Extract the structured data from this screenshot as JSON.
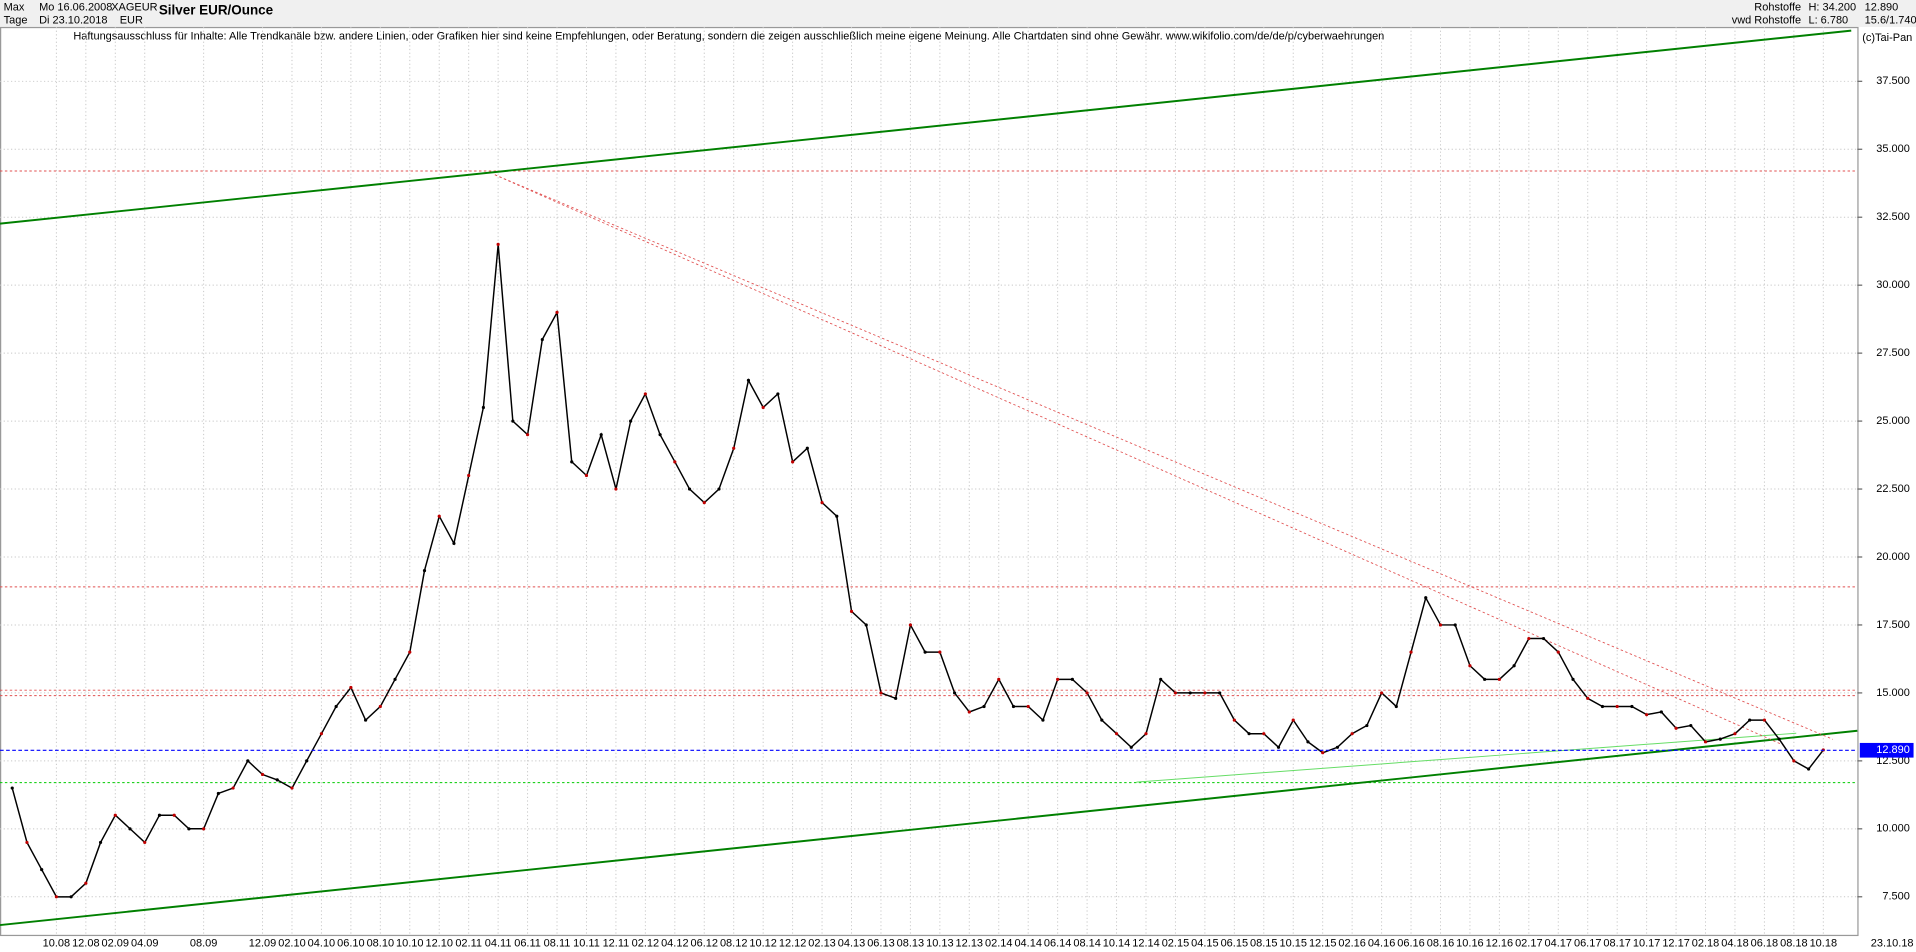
{
  "header": {
    "range": "Max",
    "period": "Tage",
    "date_from": "Mo 16.06.2008",
    "date_to": "Di 23.10.2018",
    "symbol": "XAGEUR",
    "currency": "EUR",
    "group": "Rohstoffe",
    "source": "vwd Rohstoffe",
    "high": "H: 34.200",
    "low": "L: 6.780",
    "last": "12.890",
    "change": "15.6/1.740",
    "copyright": "(c)Tai-Pan",
    "end_date": "23.10.18"
  },
  "chart_data": {
    "type": "line",
    "title": "Silver EUR/Ounce",
    "subtitle": "Haftungsausschluss für Inhalte: Alle Trendkanäle bzw. andere Linien, oder Grafiken hier sind keine Empfehlungen, oder Beratung, sondern die zeigen ausschließlich meine eigene Meinung. Alle Chartdaten sind ohne Gewähr.  www.wikifolio.com/de/de/p/cyberwaehrungen",
    "color": "#000000",
    "categories": [
      null,
      null,
      null,
      "10.08",
      null,
      "12.08",
      null,
      "02.09",
      null,
      "04.09",
      null,
      null,
      null,
      "08.09",
      null,
      null,
      null,
      "12.09",
      null,
      "02.10",
      null,
      "04.10",
      null,
      "06.10",
      null,
      "08.10",
      null,
      "10.10",
      null,
      "12.10",
      null,
      "02.11",
      null,
      "04.11",
      null,
      "06.11",
      null,
      "08.11",
      null,
      "10.11",
      null,
      "12.11",
      null,
      "02.12",
      null,
      "04.12",
      null,
      "06.12",
      null,
      "08.12",
      null,
      "10.12",
      null,
      "12.12",
      null,
      "02.13",
      null,
      "04.13",
      null,
      "06.13",
      null,
      "08.13",
      null,
      "10.13",
      null,
      "12.13",
      null,
      "02.14",
      null,
      "04.14",
      null,
      "06.14",
      null,
      "08.14",
      null,
      "10.14",
      null,
      "12.14",
      null,
      "02.15",
      null,
      "04.15",
      null,
      "06.15",
      null,
      "08.15",
      null,
      "10.15",
      null,
      "12.15",
      null,
      "02.16",
      null,
      "04.16",
      null,
      "06.16",
      null,
      "08.16",
      null,
      "10.16",
      null,
      "12.16",
      null,
      "02.17",
      null,
      "04.17",
      null,
      "06.17",
      null,
      "08.17",
      null,
      "10.17",
      null,
      "12.17",
      null,
      "02.18",
      null,
      "04.18",
      null,
      "06.18",
      null,
      "08.18",
      null,
      "10.18"
    ],
    "values": [
      11.5,
      9.5,
      8.5,
      7.5,
      7.5,
      8.0,
      9.5,
      10.5,
      10.0,
      9.5,
      10.5,
      10.5,
      10.0,
      10.0,
      11.3,
      11.5,
      12.5,
      12.0,
      11.8,
      11.5,
      12.5,
      13.5,
      14.5,
      15.2,
      14.0,
      14.5,
      15.5,
      16.5,
      19.5,
      21.5,
      20.5,
      23.0,
      25.5,
      31.5,
      25.0,
      24.5,
      28.0,
      29.0,
      23.5,
      23.0,
      24.5,
      22.5,
      25.0,
      26.0,
      24.5,
      23.5,
      22.5,
      22.0,
      22.5,
      24.0,
      26.5,
      25.5,
      26.0,
      23.5,
      24.0,
      22.0,
      21.5,
      18.0,
      17.5,
      15.0,
      14.8,
      17.5,
      16.5,
      16.5,
      15.0,
      14.3,
      14.5,
      15.5,
      14.5,
      14.5,
      14.0,
      15.5,
      15.5,
      15.0,
      14.0,
      13.5,
      13.0,
      13.5,
      15.5,
      15.0,
      15.0,
      15.0,
      15.0,
      14.0,
      13.5,
      13.5,
      13.0,
      14.0,
      13.2,
      12.8,
      13.0,
      13.5,
      13.8,
      15.0,
      14.5,
      16.5,
      18.5,
      17.5,
      17.5,
      16.0,
      15.5,
      15.5,
      16.0,
      17.0,
      17.0,
      16.5,
      15.5,
      14.8,
      14.5,
      14.5,
      14.5,
      14.2,
      14.3,
      13.7,
      13.8,
      13.2,
      13.3,
      13.5,
      14.0,
      14.0,
      13.3,
      12.5,
      12.2,
      12.9
    ],
    "ylim": [
      6.1,
      39.5
    ],
    "yticks": [
      {
        "value": 7.5,
        "label": "7.500"
      },
      {
        "value": 10,
        "label": "10.000"
      },
      {
        "value": 12.5,
        "label": "12.500"
      },
      {
        "value": 15,
        "label": "15.000"
      },
      {
        "value": 17.5,
        "label": "17.500"
      },
      {
        "value": 20,
        "label": "20.000"
      },
      {
        "value": 22.5,
        "label": "22.500"
      },
      {
        "value": 25,
        "label": "25.000"
      },
      {
        "value": 27.5,
        "label": "27.500"
      },
      {
        "value": 30,
        "label": "30.000"
      },
      {
        "value": 32.5,
        "label": "32.500"
      },
      {
        "value": 35,
        "label": "35.000"
      },
      {
        "value": 37.5,
        "label": "37.500"
      }
    ],
    "grid": true,
    "current_price": {
      "value": 12.89,
      "label": "12.890",
      "color": "#0000ff"
    },
    "levels": [
      {
        "value": 34.2,
        "color": "#e05050"
      },
      {
        "value": 18.9,
        "color": "#e05050"
      },
      {
        "value": 15.1,
        "color": "#e05050"
      },
      {
        "value": 14.9,
        "color": "#e05050"
      },
      {
        "value": 11.7,
        "color": "#00cc00"
      }
    ]
  }
}
